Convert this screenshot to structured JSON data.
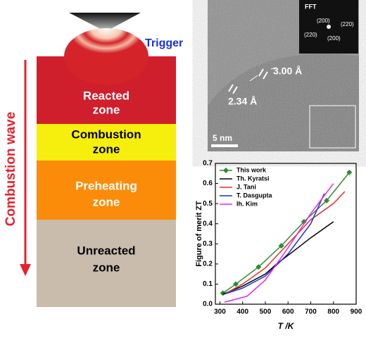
{
  "diagram": {
    "trigger": "Trigger",
    "wave": "Combustion wave",
    "zones": [
      [
        "Reacted",
        "zone"
      ],
      [
        "Combustion",
        "zone"
      ],
      [
        "Preheating",
        "zone"
      ],
      [
        "Unreacted",
        "zone"
      ]
    ]
  },
  "micrograph": {
    "fft": "FFT",
    "spots": [
      "(200)",
      "(220)",
      "(220)",
      "(200)"
    ],
    "spacings": [
      "3.00 Å",
      "2.34 Å"
    ],
    "scale_bar": "5 nm"
  },
  "chart_data": {
    "type": "line",
    "xlabel": "T /K",
    "ylabel": "Figure of merit ZT",
    "xlim": [
      280,
      900
    ],
    "ylim": [
      0,
      0.7
    ],
    "xticks": [
      300,
      400,
      500,
      600,
      700,
      800,
      900
    ],
    "yticks": [
      {
        "value": 0,
        "label": "0.0"
      },
      0.1,
      0.2,
      0.3,
      0.4,
      0.5,
      0.6,
      0.7
    ],
    "series": [
      {
        "name": "This work",
        "color": "#2e8b2e",
        "marker": "diamond",
        "x": [
          313,
          370,
          470,
          570,
          670,
          770,
          870
        ],
        "values": [
          0.055,
          0.1,
          0.185,
          0.29,
          0.41,
          0.515,
          0.655
        ]
      },
      {
        "name": "Th. Kyratsi",
        "color": "#000000",
        "x": [
          313,
          400,
          500,
          550,
          620,
          700,
          800
        ],
        "values": [
          0.05,
          0.09,
          0.15,
          0.2,
          0.26,
          0.33,
          0.41
        ]
      },
      {
        "name": "J. Tani",
        "color": "#e8302a",
        "x": [
          320,
          400,
          500,
          600,
          700,
          800,
          850
        ],
        "values": [
          0.05,
          0.1,
          0.18,
          0.3,
          0.42,
          0.5,
          0.56
        ]
      },
      {
        "name": "T. Dasgupta",
        "color": "#1f2fd6",
        "x": [
          320,
          400,
          500,
          600,
          700,
          760
        ],
        "values": [
          0.05,
          0.08,
          0.14,
          0.25,
          0.4,
          0.55
        ]
      },
      {
        "name": "Ih. Kim",
        "color": "#f020f0",
        "x": [
          320,
          420,
          500,
          600,
          700,
          800
        ],
        "values": [
          0.01,
          0.04,
          0.12,
          0.28,
          0.45,
          0.6
        ]
      }
    ]
  }
}
